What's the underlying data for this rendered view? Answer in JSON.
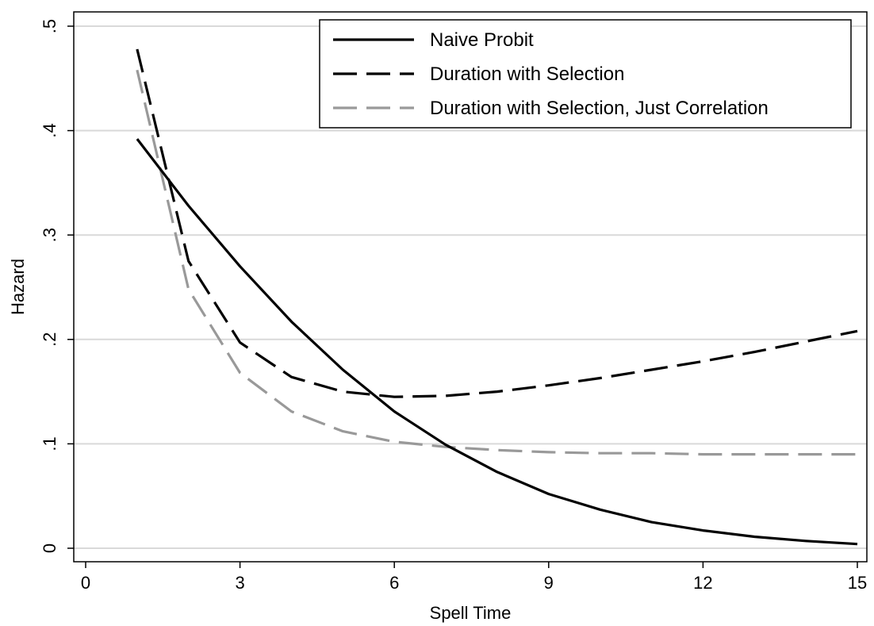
{
  "chart_data": {
    "type": "line",
    "title": "",
    "xlabel": "Spell Time",
    "ylabel": "Hazard",
    "xlim": [
      0,
      15
    ],
    "ylim": [
      0,
      0.5
    ],
    "x_ticks": [
      0,
      3,
      6,
      9,
      12,
      15
    ],
    "x_tick_labels": [
      "0",
      "3",
      "6",
      "9",
      "12",
      "15"
    ],
    "y_ticks": [
      0,
      0.1,
      0.2,
      0.3,
      0.4,
      0.5
    ],
    "y_tick_labels": [
      "0",
      ".1",
      ".2",
      ".3",
      ".4",
      ".5"
    ],
    "grid": "horizontal",
    "legend_position": "top-right",
    "x": [
      1,
      2,
      3,
      4,
      5,
      6,
      7,
      8,
      9,
      10,
      11,
      12,
      13,
      14,
      15
    ],
    "series": [
      {
        "name": "Naive Probit",
        "color": "#000000",
        "style": "solid",
        "values": [
          0.392,
          0.328,
          0.27,
          0.217,
          0.171,
          0.131,
          0.099,
          0.073,
          0.052,
          0.037,
          0.025,
          0.017,
          0.011,
          0.007,
          0.004
        ]
      },
      {
        "name": "Duration with Selection",
        "color": "#000000",
        "style": "dashed",
        "values": [
          0.478,
          0.275,
          0.197,
          0.164,
          0.15,
          0.145,
          0.146,
          0.15,
          0.156,
          0.163,
          0.171,
          0.179,
          0.188,
          0.198,
          0.208
        ]
      },
      {
        "name": "Duration with Selection, Just Correlation",
        "color": "#999999",
        "style": "dashed",
        "values": [
          0.458,
          0.248,
          0.168,
          0.131,
          0.112,
          0.102,
          0.097,
          0.094,
          0.092,
          0.091,
          0.091,
          0.09,
          0.09,
          0.09,
          0.09
        ]
      }
    ]
  }
}
